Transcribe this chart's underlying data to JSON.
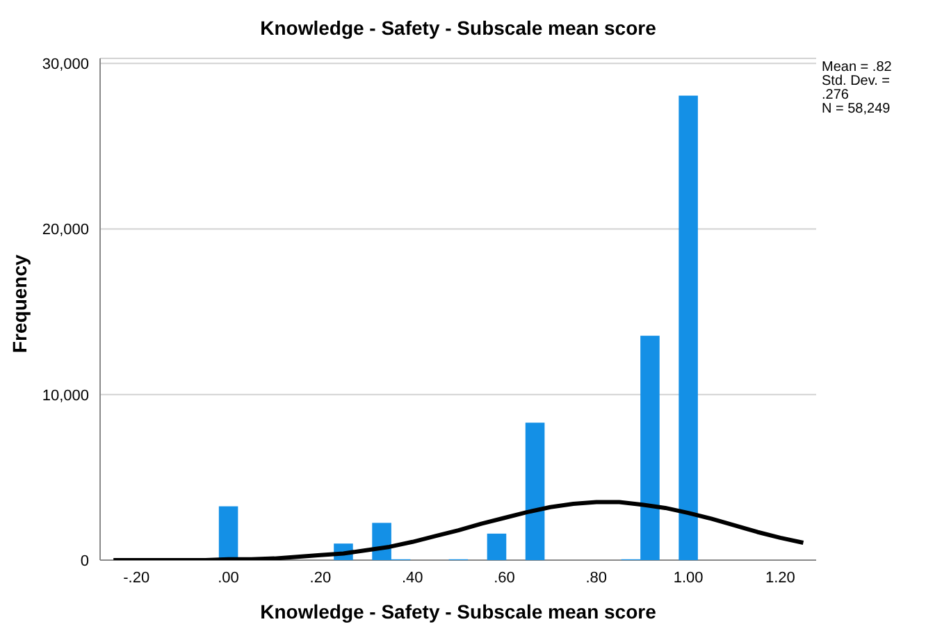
{
  "chart_data": {
    "type": "histogram",
    "title": "Knowledge - Safety - Subscale mean score",
    "xlabel": "Knowledge - Safety - Subscale mean score",
    "ylabel": "Frequency",
    "annotations": [
      "Mean = .82",
      "Std. Dev. = .276",
      "N = 58,249"
    ],
    "bins": [
      -0.0208,
      0.0208,
      0.0625,
      0.1042,
      0.1458,
      0.1875,
      0.2292,
      0.2708,
      0.3125,
      0.3542,
      0.3958,
      0.4375,
      0.4792,
      0.5208,
      0.5625,
      0.6042,
      0.6458,
      0.6875,
      0.7292,
      0.7708,
      0.8125,
      0.8542,
      0.8958,
      0.9375,
      0.9792,
      1.0208
    ],
    "values": [
      3250,
      0,
      0,
      0,
      0,
      0,
      1000,
      0,
      2250,
      50,
      0,
      0,
      50,
      0,
      1600,
      0,
      8300,
      0,
      0,
      0,
      0,
      50,
      13550,
      0,
      28050
    ],
    "color": "#1490e6",
    "series": [
      {
        "type": "line",
        "color": "#000000",
        "x": [
          -0.25,
          -0.2,
          -0.15,
          -0.1,
          -0.05,
          0,
          0.05,
          0.1,
          0.15,
          0.2,
          0.25,
          0.3,
          0.35,
          0.4,
          0.45,
          0.5,
          0.55,
          0.6,
          0.65,
          0.7,
          0.75,
          0.8,
          0.85,
          0.9,
          0.95,
          1.0,
          1.05,
          1.1,
          1.15,
          1.2,
          1.25
        ],
        "values": [
          0,
          0,
          0,
          0,
          0,
          50,
          50,
          100,
          200,
          300,
          400,
          600,
          800,
          1100,
          1450,
          1800,
          2200,
          2550,
          2900,
          3200,
          3400,
          3500,
          3500,
          3350,
          3150,
          2850,
          2500,
          2100,
          1700,
          1350,
          1050
        ]
      }
    ],
    "xlim": [
      -0.279,
      1.278
    ],
    "ylim": [
      0,
      30300
    ],
    "xticks": [
      {
        "value": -0.2,
        "label": "-.20"
      },
      {
        "value": 0,
        "label": ".00"
      },
      {
        "value": 0.2,
        "label": ".20"
      },
      {
        "value": 0.4,
        "label": ".40"
      },
      {
        "value": 0.6,
        "label": ".60"
      },
      {
        "value": 0.8,
        "label": ".80"
      },
      {
        "value": 1,
        "label": "1.00"
      },
      {
        "value": 1.2,
        "label": "1.20"
      }
    ],
    "yticks": [
      0,
      {
        "value": 10000,
        "label": "10,000"
      },
      {
        "value": 20000,
        "label": "20,000"
      },
      {
        "value": 30000,
        "label": "30,000"
      }
    ],
    "grid": "y"
  }
}
